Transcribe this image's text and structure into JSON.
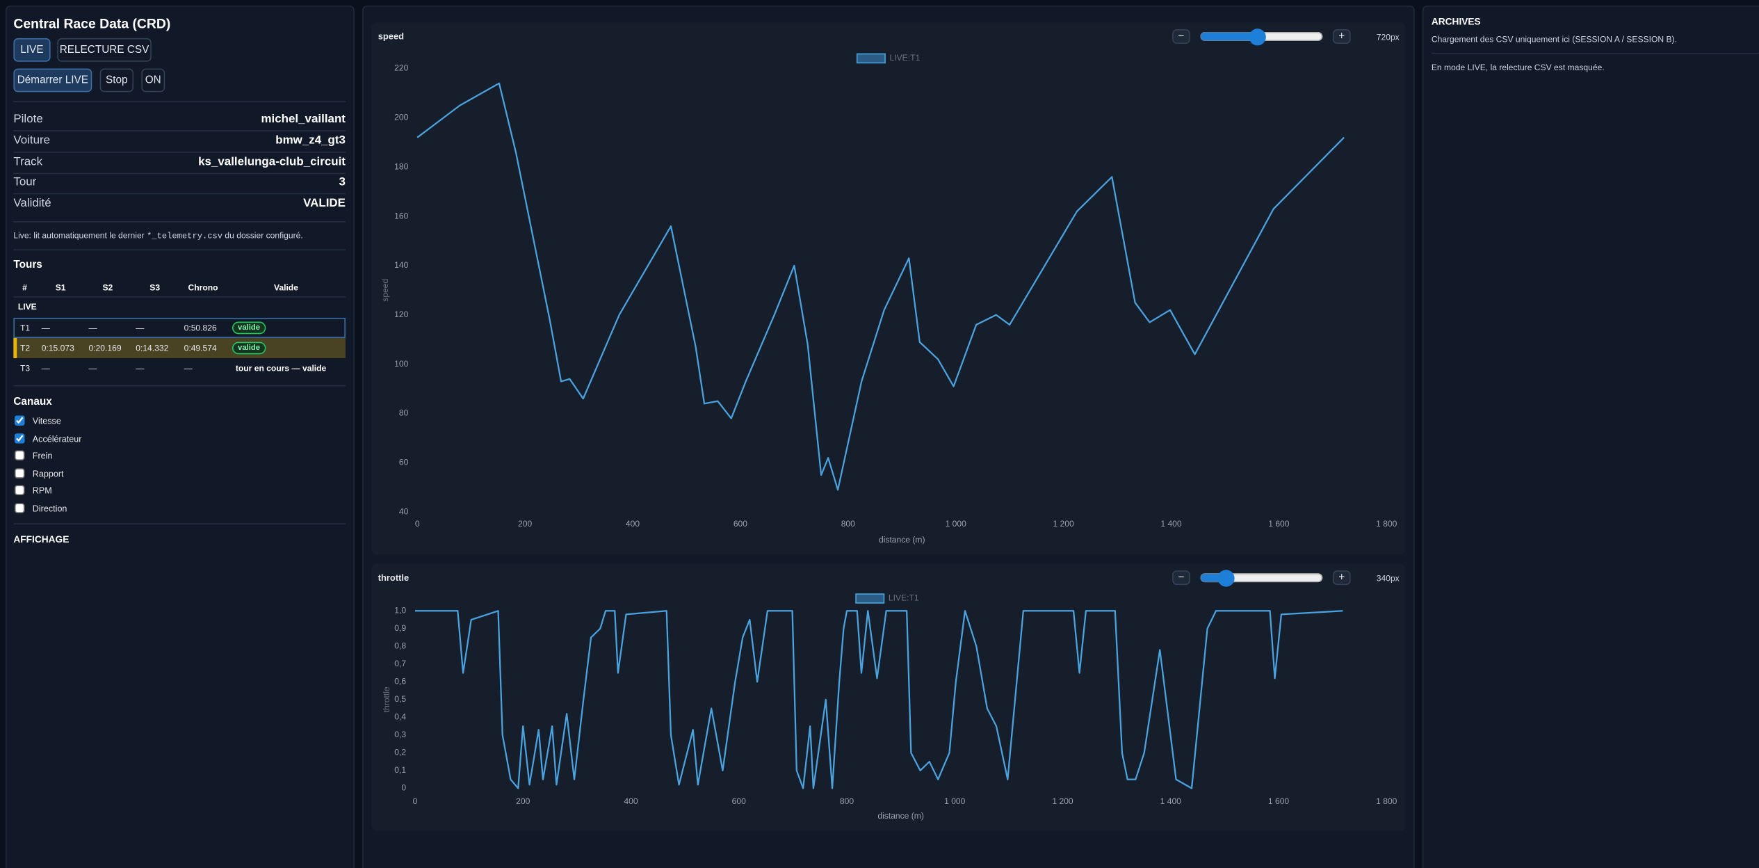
{
  "sidebar": {
    "title": "Central Race Data (CRD)",
    "modes": [
      "LIVE",
      "RELECTURE CSV"
    ],
    "actions": [
      "Démarrer LIVE",
      "Stop",
      "ON"
    ],
    "info": [
      [
        "Pilote",
        "michel_vaillant"
      ],
      [
        "Voiture",
        "bmw_z4_gt3"
      ],
      [
        "Track",
        "ks_vallelunga-club_circuit"
      ],
      [
        "Tour",
        "3"
      ],
      [
        "Validité",
        "VALIDE"
      ]
    ],
    "note": {
      "before": "Live: lit automatiquement le dernier ",
      "code": "*_telemetry.csv",
      "after": " du dossier configuré."
    },
    "tours": {
      "title": "Tours",
      "headers": [
        "#",
        "S1",
        "S2",
        "S3",
        "Chrono",
        "Valide"
      ],
      "group": "LIVE",
      "rows": [
        [
          "T1",
          "—",
          "—",
          "—",
          "0:50.826",
          "valide"
        ],
        [
          "T2",
          "0:15.073",
          "0:20.169",
          "0:14.332",
          "0:49.574",
          "valide"
        ],
        [
          "T3",
          "—",
          "—",
          "—",
          "—",
          "tour en cours — valide"
        ]
      ]
    },
    "channels": {
      "title": "Canaux",
      "items": [
        {
          "label": "Vitesse",
          "checked": true
        },
        {
          "label": "Accélérateur",
          "checked": true
        },
        {
          "label": "Frein",
          "checked": false
        },
        {
          "label": "Rapport",
          "checked": false
        },
        {
          "label": "RPM",
          "checked": false
        },
        {
          "label": "Direction",
          "checked": false
        }
      ]
    },
    "display_title": "AFFICHAGE"
  },
  "chart_controls": [
    {
      "minus": "−",
      "plus": "+",
      "size": "720px"
    },
    {
      "minus": "−",
      "plus": "+",
      "size": "340px"
    }
  ],
  "chart_data": [
    {
      "type": "line",
      "title": "speed",
      "x_label": "distance (m)",
      "y_label": "speed",
      "legend": "top",
      "x": [
        0,
        79,
        152,
        183,
        246,
        267,
        283,
        308,
        375,
        471,
        517,
        533,
        558,
        583,
        610,
        663,
        700,
        725,
        750,
        763,
        781,
        825,
        867,
        913,
        933,
        967,
        996,
        1038,
        1075,
        1100,
        1225,
        1290,
        1333,
        1360,
        1398,
        1444,
        1590,
        1721
      ],
      "series": [
        {
          "name": "LIVE:T1",
          "color": "#4aa3df",
          "values": [
            192,
            205,
            214,
            186,
            118,
            93,
            94,
            86,
            120,
            156,
            107,
            84,
            85,
            78,
            93,
            120,
            140,
            108,
            55,
            62,
            49,
            93,
            122,
            143,
            109,
            102,
            91,
            116,
            120,
            116,
            162,
            176,
            125,
            117,
            122,
            104,
            163,
            192
          ]
        }
      ],
      "xlim": [
        0,
        1800
      ],
      "xticks": [
        0,
        200,
        400,
        600,
        800,
        {
          "value": 1000,
          "label": "1 000"
        },
        {
          "value": 1200,
          "label": "1 200"
        },
        {
          "value": 1400,
          "label": "1 400"
        },
        {
          "value": 1600,
          "label": "1 600"
        },
        {
          "value": 1800,
          "label": "1 800"
        }
      ],
      "ylim": [
        40,
        220
      ],
      "yticks": [
        40,
        60,
        80,
        100,
        120,
        140,
        160,
        180,
        200,
        220
      ]
    },
    {
      "type": "line",
      "title": "throttle",
      "x_label": "distance (m)",
      "y_label": "throttle",
      "legend": "top",
      "x": [
        0,
        79,
        89,
        104,
        154,
        162,
        177,
        191,
        200,
        212,
        229,
        237,
        254,
        262,
        281,
        295,
        312,
        326,
        343,
        353,
        370,
        376,
        391,
        466,
        474,
        489,
        515,
        524,
        549,
        570,
        593,
        607,
        620,
        634,
        653,
        699,
        707,
        719,
        732,
        738,
        761,
        773,
        786,
        794,
        800,
        819,
        827,
        839,
        856,
        873,
        911,
        919,
        936,
        953,
        969,
        990,
        1002,
        1019,
        1040,
        1060,
        1077,
        1098,
        1127,
        1220,
        1231,
        1243,
        1297,
        1310,
        1320,
        1335,
        1351,
        1380,
        1410,
        1439,
        1468,
        1484,
        1584,
        1593,
        1605,
        1719
      ],
      "series": [
        {
          "name": "LIVE:T1",
          "color": "#4aa3df",
          "values": [
            1,
            1,
            0.65,
            0.95,
            1,
            0.3,
            0.05,
            0,
            0.35,
            0.02,
            0.33,
            0.05,
            0.35,
            0.02,
            0.42,
            0.05,
            0.5,
            0.85,
            0.9,
            1,
            1,
            0.65,
            0.98,
            1,
            0.3,
            0.02,
            0.33,
            0.02,
            0.45,
            0.1,
            0.6,
            0.85,
            0.95,
            0.6,
            1,
            1,
            0.1,
            0,
            0.35,
            0,
            0.5,
            0,
            0.6,
            0.9,
            1,
            1,
            0.65,
            1,
            0.62,
            1,
            1,
            0.2,
            0.1,
            0.15,
            0.05,
            0.2,
            0.6,
            1,
            0.8,
            0.45,
            0.35,
            0.05,
            1,
            1,
            0.65,
            1,
            1,
            0.2,
            0.05,
            0.05,
            0.2,
            0.78,
            0.05,
            0,
            0.9,
            1,
            1,
            0.62,
            0.98,
            1
          ]
        }
      ],
      "xlim": [
        0,
        1800
      ],
      "xticks": [
        0,
        200,
        400,
        600,
        800,
        {
          "value": 1000,
          "label": "1 000"
        },
        {
          "value": 1200,
          "label": "1 200"
        },
        {
          "value": 1400,
          "label": "1 400"
        },
        {
          "value": 1600,
          "label": "1 600"
        },
        {
          "value": 1800,
          "label": "1 800"
        }
      ],
      "ylim": [
        0,
        1
      ],
      "yticks": [
        0,
        {
          "value": 0.1,
          "label": "0,1"
        },
        {
          "value": 0.2,
          "label": "0,2"
        },
        {
          "value": 0.3,
          "label": "0,3"
        },
        {
          "value": 0.4,
          "label": "0,4"
        },
        {
          "value": 0.5,
          "label": "0,5"
        },
        {
          "value": 0.6,
          "label": "0,6"
        },
        {
          "value": 0.7,
          "label": "0,7"
        },
        {
          "value": 0.8,
          "label": "0,8"
        },
        {
          "value": 0.9,
          "label": "0,9"
        },
        {
          "value": 1,
          "label": "1,0"
        }
      ]
    }
  ],
  "archives": {
    "title": "ARCHIVES",
    "lines": [
      "Chargement des CSV uniquement ici (SESSION A / SESSION B).",
      "En mode LIVE, la relecture CSV est masquée."
    ]
  }
}
